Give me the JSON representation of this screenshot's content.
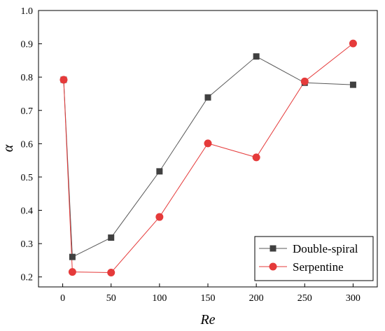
{
  "chart_data": {
    "type": "line",
    "title": "",
    "xlabel": "Re",
    "ylabel": "α",
    "x": [
      1,
      10,
      50,
      100,
      150,
      200,
      250,
      300
    ],
    "xticks": [
      0,
      50,
      100,
      150,
      200,
      250,
      300
    ],
    "yticks": [
      0.2,
      0.3,
      0.4,
      0.5,
      0.6,
      0.7,
      0.8,
      0.9,
      1.0
    ],
    "ytick_labels": [
      "0.2",
      "0.3",
      "0.4",
      "0.5",
      "0.6",
      "0.7",
      "0.8",
      "0.9",
      "1.0"
    ],
    "xlim": [
      -25,
      325
    ],
    "ylim": [
      0.17,
      1.0
    ],
    "grid": false,
    "legend_position": "bottom-right",
    "series": [
      {
        "name": "Double-spiral",
        "values": [
          0.792,
          0.26,
          0.318,
          0.517,
          0.739,
          0.862,
          0.783,
          0.777
        ],
        "color": "#595959",
        "marker": "square"
      },
      {
        "name": "Serpentine",
        "values": [
          0.792,
          0.215,
          0.213,
          0.38,
          0.601,
          0.559,
          0.787,
          0.901
        ],
        "color": "#e53a3a",
        "marker": "circle"
      }
    ]
  }
}
